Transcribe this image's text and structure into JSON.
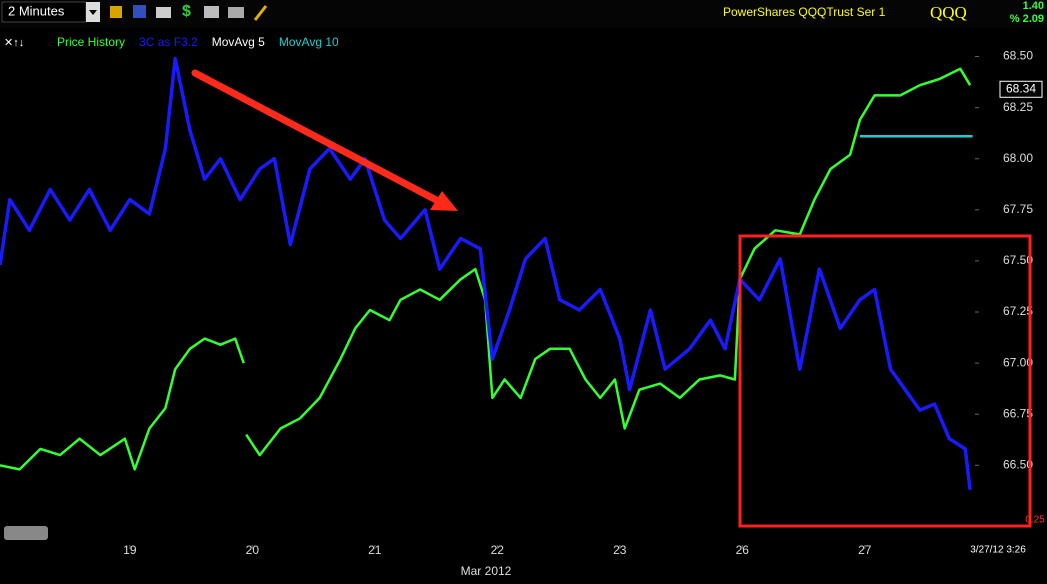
{
  "toolbar": {
    "interval": "2 Minutes",
    "instrument": "PowerShares QQQTrust Ser 1",
    "symbol": "QQQ",
    "change": "1.40",
    "change_pct": "% 2.09"
  },
  "chart_data": {
    "type": "line",
    "xlim": [
      17.94,
      25.9
    ],
    "xticks": [
      19,
      20,
      21,
      22,
      23,
      {
        "value": 24,
        "label": "26"
      },
      {
        "value": 25,
        "label": "27"
      }
    ],
    "x_label": "Mar 2012",
    "ylim": [
      66.11,
      68.63
    ],
    "yticks": [
      {
        "value": 66.5,
        "label": "66.50"
      },
      66.75,
      {
        "value": 67,
        "label": "67.00"
      },
      67.25,
      {
        "value": 67.5,
        "label": "67.50"
      },
      67.75,
      {
        "value": 68,
        "label": "68.00"
      },
      68.25,
      {
        "value": 68.5,
        "label": "68.50"
      }
    ],
    "last_value": 68.34,
    "timestamp": "3/27/12 3:26",
    "lower_label": "0.25",
    "grid": false,
    "series": [
      {
        "name": "Price History",
        "color": "#33ff33",
        "x": [
          17.94,
          18.1,
          18.27,
          18.43,
          18.59,
          18.76,
          18.96,
          19.04,
          19.16,
          19.29,
          19.37,
          19.49,
          19.61,
          19.74,
          19.86,
          19.93,
          19.94,
          19.95,
          20.06,
          20.23,
          20.39,
          20.55,
          20.72,
          20.84,
          20.96,
          21.12,
          21.21,
          21.37,
          21.53,
          21.7,
          21.82,
          21.9,
          21.96,
          22.06,
          22.19,
          22.31,
          22.43,
          22.59,
          22.72,
          22.84,
          22.96,
          23.04,
          23.16,
          23.33,
          23.49,
          23.65,
          23.82,
          23.94,
          23.98,
          24.1,
          24.27,
          24.47,
          24.59,
          24.72,
          24.88,
          24.96,
          25.08,
          25.29,
          25.45,
          25.61,
          25.78,
          25.86
        ],
        "values": [
          66.5,
          66.48,
          66.58,
          66.55,
          66.63,
          66.55,
          66.63,
          66.48,
          66.68,
          66.78,
          66.97,
          67.07,
          67.12,
          67.09,
          67.12,
          67.0,
          null,
          66.65,
          66.55,
          66.68,
          66.73,
          66.83,
          67.02,
          67.17,
          67.26,
          67.21,
          67.31,
          67.36,
          67.31,
          67.41,
          67.46,
          67.31,
          66.83,
          66.92,
          66.83,
          67.02,
          67.07,
          67.07,
          66.92,
          66.83,
          66.92,
          66.68,
          66.87,
          66.9,
          66.83,
          66.92,
          66.94,
          66.92,
          67.41,
          67.56,
          67.65,
          67.63,
          67.8,
          67.95,
          68.02,
          68.19,
          68.31,
          68.31,
          68.36,
          68.39,
          68.44,
          68.36
        ]
      },
      {
        "name": "3C as F3.2",
        "color": "#1a1aff",
        "x": [
          17.94,
          18.02,
          18.18,
          18.35,
          18.51,
          18.67,
          18.84,
          19.0,
          19.16,
          19.29,
          19.37,
          19.49,
          19.61,
          19.74,
          19.9,
          20.06,
          20.18,
          20.31,
          20.47,
          20.63,
          20.8,
          20.92,
          21.08,
          21.21,
          21.41,
          21.53,
          21.7,
          21.86,
          21.96,
          22.1,
          22.23,
          22.39,
          22.51,
          22.67,
          22.84,
          23.0,
          23.08,
          23.25,
          23.37,
          23.57,
          23.74,
          23.86,
          23.98,
          24.14,
          24.31,
          24.47,
          24.63,
          24.8,
          24.96,
          25.08,
          25.21,
          25.33,
          25.45,
          25.57,
          25.69,
          25.82,
          25.86
        ],
        "values": [
          67.48,
          67.8,
          67.65,
          67.85,
          67.7,
          67.85,
          67.65,
          67.8,
          67.73,
          68.05,
          68.49,
          68.14,
          67.9,
          68.0,
          67.8,
          67.95,
          68.0,
          67.58,
          67.95,
          68.05,
          67.9,
          68.0,
          67.7,
          67.61,
          67.75,
          67.46,
          67.61,
          67.56,
          67.02,
          67.26,
          67.51,
          67.61,
          67.31,
          67.26,
          67.36,
          67.12,
          66.87,
          67.26,
          66.97,
          67.07,
          67.21,
          67.07,
          67.41,
          67.31,
          67.51,
          66.97,
          67.46,
          67.17,
          67.31,
          67.36,
          66.97,
          66.87,
          66.77,
          66.8,
          66.63,
          66.58,
          66.38
        ]
      },
      {
        "name": "MovAvg 5",
        "color": "#ffffff",
        "x": [],
        "values": []
      },
      {
        "name": "MovAvg 10",
        "color": "#22cccc",
        "x": [
          24.96,
          25.88
        ],
        "values": [
          68.11,
          68.11
        ]
      }
    ]
  }
}
